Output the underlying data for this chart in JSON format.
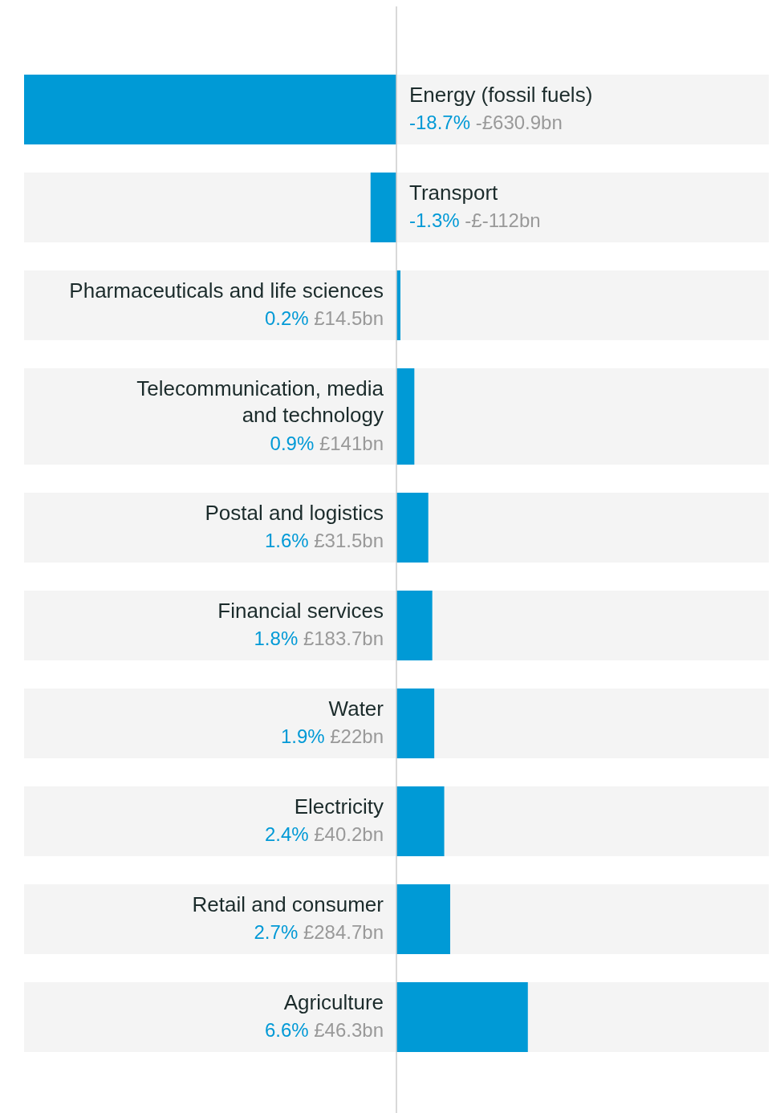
{
  "chart_data": {
    "type": "bar",
    "orientation": "horizontal",
    "categories": [
      "Energy (fossil fuels)",
      "Transport",
      "Pharmaceuticals and life sciences",
      "Telecommunication, media and technology",
      "Postal and logistics",
      "Financial services",
      "Water",
      "Electricity",
      "Retail and consumer",
      "Agriculture"
    ],
    "values": [
      -18.7,
      -1.3,
      0.2,
      0.9,
      1.6,
      1.8,
      1.9,
      2.4,
      2.7,
      6.6
    ],
    "value_labels": [
      "-18.7% -£630.9bn",
      "-1.3% -£-112bn",
      "0.2% £14.5bn",
      "0.9% £141bn",
      "1.6% £31.5bn",
      "1.8% £183.7bn",
      "1.9% £22bn",
      "2.4% £40.2bn",
      "2.7% £284.7bn",
      "6.6% £46.3bn"
    ],
    "color": "#009ad6",
    "xlim": [
      -18.7,
      18.7
    ]
  }
}
